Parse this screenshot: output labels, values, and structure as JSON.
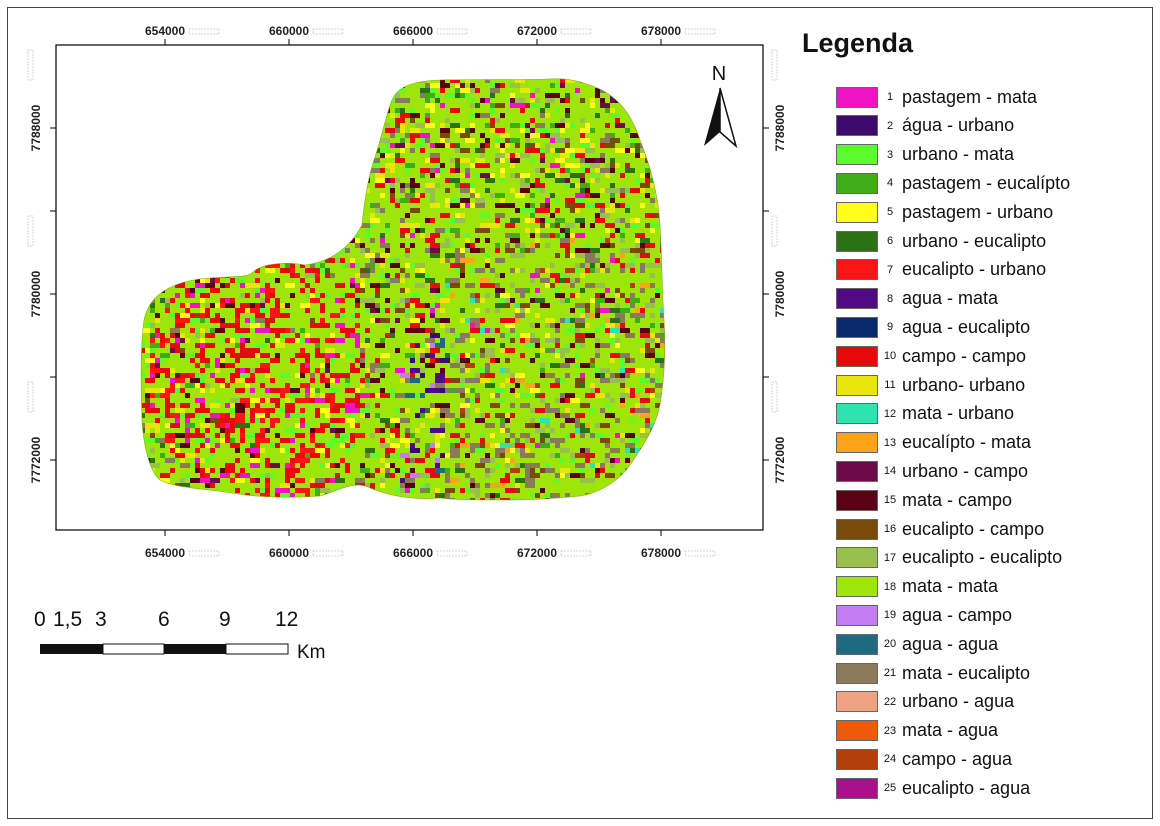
{
  "legend": {
    "title": "Legenda",
    "items": [
      {
        "num": "1",
        "label": "pastagem - mata",
        "color": "#f013c4"
      },
      {
        "num": "2",
        "label": "água - urbano",
        "color": "#3d0a70"
      },
      {
        "num": "3",
        "label": "urbano - mata",
        "color": "#5cfc2c"
      },
      {
        "num": "4",
        "label": "pastagem - eucalípto",
        "color": "#3eae18"
      },
      {
        "num": "5",
        "label": "pastagem - urbano",
        "color": "#ffff1a"
      },
      {
        "num": "6",
        "label": "urbano - eucalipto",
        "color": "#2a7214"
      },
      {
        "num": "7",
        "label": "eucalipto - urbano",
        "color": "#ff1414"
      },
      {
        "num": "8",
        "label": "agua - mata",
        "color": "#4f0a84"
      },
      {
        "num": "9",
        "label": "agua - eucalipto",
        "color": "#0a2a6e"
      },
      {
        "num": "10",
        "label": "campo - campo",
        "color": "#e60a0a"
      },
      {
        "num": "11",
        "label": "urbano- urbano",
        "color": "#e8e60a"
      },
      {
        "num": "12",
        "label": "mata - urbano",
        "color": "#2ee4ae"
      },
      {
        "num": "13",
        "label": "eucalípto - mata",
        "color": "#ffa41a"
      },
      {
        "num": "14",
        "label": "urbano - campo",
        "color": "#6e0a4a"
      },
      {
        "num": "15",
        "label": "mata - campo",
        "color": "#5a0014"
      },
      {
        "num": "16",
        "label": "eucalipto - campo",
        "color": "#7a4a08"
      },
      {
        "num": "17",
        "label": "eucalipto - eucalipto",
        "color": "#98c050"
      },
      {
        "num": "18",
        "label": "mata - mata",
        "color": "#9ee60a"
      },
      {
        "num": "19",
        "label": "agua - campo",
        "color": "#c27ef0"
      },
      {
        "num": "20",
        "label": "agua - agua",
        "color": "#1e6a80"
      },
      {
        "num": "21",
        "label": "mata - eucalipto",
        "color": "#8a7a5c"
      },
      {
        "num": "22",
        "label": "urbano - agua",
        "color": "#f0a282"
      },
      {
        "num": "23",
        "label": "mata - agua",
        "color": "#ec5a0a"
      },
      {
        "num": "24",
        "label": "campo - agua",
        "color": "#b2400a"
      },
      {
        "num": "25",
        "label": "eucalipto - agua",
        "color": "#a8108c"
      }
    ]
  },
  "map": {
    "x_ticks": [
      "654000",
      "660000",
      "666000",
      "672000",
      "678000"
    ],
    "y_ticks": [
      "7788000",
      "7780000",
      "7772000"
    ],
    "north_label": "N"
  },
  "scale_bar": {
    "labels": [
      "0",
      "1,5",
      "3",
      "6",
      "9",
      "12"
    ],
    "unit": "Km"
  }
}
